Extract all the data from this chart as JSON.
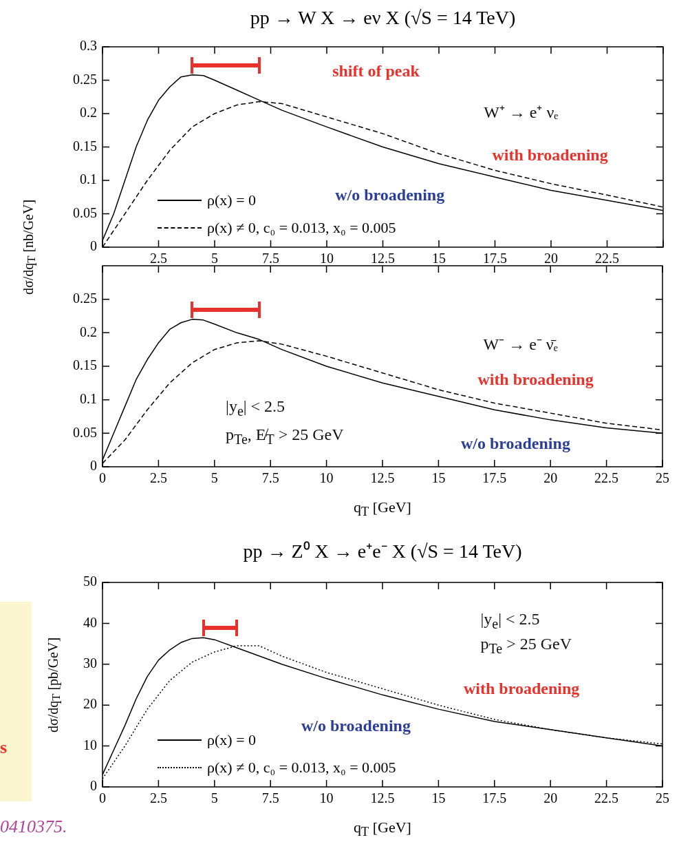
{
  "chart_data": [
    {
      "type": "line",
      "title": "pp → W X → eν X (√S = 14 TeV)",
      "ylabel": "dσ/dq$_{T}$ [nb/GeV]",
      "xlim": [
        0,
        25
      ],
      "xticks": [
        {
          "value": 0,
          "label": null
        },
        2.5,
        5,
        7.5,
        10,
        12.5,
        15,
        17.5,
        20,
        22.5,
        {
          "value": 25,
          "label": null
        }
      ],
      "ylim": [
        0,
        0.3
      ],
      "yticks": [
        0,
        0.05,
        0.1,
        0.15,
        0.2,
        0.25,
        0.3
      ],
      "grid": false,
      "legend": "bottom left",
      "marker": "none",
      "series": [
        {
          "name": "ρ(x) = 0",
          "color": "#000000",
          "line_style": "solid",
          "x": [
            0,
            0.5,
            1,
            1.5,
            2,
            2.5,
            3,
            3.5,
            4,
            4.5,
            5,
            6,
            7,
            8,
            10,
            12.5,
            15,
            17.5,
            20,
            22.5,
            25
          ],
          "values": [
            0.01,
            0.05,
            0.1,
            0.15,
            0.19,
            0.22,
            0.24,
            0.255,
            0.258,
            0.257,
            0.25,
            0.235,
            0.22,
            0.205,
            0.18,
            0.15,
            0.125,
            0.105,
            0.085,
            0.07,
            0.055
          ]
        },
        {
          "name": "ρ(x) ≠ 0, c₀ = 0.013, x₀ = 0.005",
          "color": "#000000",
          "line_style": "dashed",
          "x": [
            0,
            1,
            2,
            3,
            4,
            5,
            6,
            7,
            8,
            10,
            12.5,
            15,
            17.5,
            20,
            22.5,
            25
          ],
          "values": [
            0,
            0.05,
            0.1,
            0.145,
            0.18,
            0.2,
            0.213,
            0.218,
            0.215,
            0.195,
            0.17,
            0.14,
            0.115,
            0.095,
            0.078,
            0.06
          ]
        }
      ],
      "annotations": [
        "shift of peak",
        "W⁺ → e⁺ νₑ",
        "with broadening",
        "w/o broadening"
      ]
    },
    {
      "type": "line",
      "xlabel": "q$_{T}$ [GeV]",
      "xlim": [
        0,
        25
      ],
      "xticks": [
        0,
        2.5,
        5,
        7.5,
        10,
        12.5,
        15,
        17.5,
        20,
        22.5,
        25
      ],
      "ylim": [
        0,
        0.3
      ],
      "yticks": [
        0,
        0.05,
        0.1,
        0.15,
        0.2,
        0.25
      ],
      "grid": false,
      "legend": false,
      "marker": "none",
      "series": [
        {
          "color": "#000000",
          "line_style": "solid",
          "x": [
            0,
            0.5,
            1,
            1.5,
            2,
            2.5,
            3,
            3.5,
            4,
            4.5,
            5,
            6,
            7,
            8,
            10,
            12.5,
            15,
            17.5,
            20,
            22.5,
            25
          ],
          "values": [
            0.01,
            0.05,
            0.09,
            0.13,
            0.16,
            0.185,
            0.205,
            0.215,
            0.22,
            0.219,
            0.213,
            0.2,
            0.19,
            0.175,
            0.15,
            0.125,
            0.105,
            0.085,
            0.07,
            0.058,
            0.05
          ]
        },
        {
          "color": "#000000",
          "line_style": "dashed",
          "x": [
            0,
            1,
            2,
            3,
            4,
            5,
            6,
            7,
            8,
            10,
            12.5,
            15,
            17.5,
            20,
            22.5,
            25
          ],
          "values": [
            0.005,
            0.04,
            0.085,
            0.125,
            0.155,
            0.175,
            0.185,
            0.188,
            0.183,
            0.165,
            0.14,
            0.115,
            0.095,
            0.08,
            0.065,
            0.055
          ]
        }
      ],
      "annotations": [
        "W⁻ → e⁻ ν̄ₑ",
        "with broadening",
        "|y$_{e}$| < 2.5",
        "p$_{Te}$, E̸$_{T}$ > 25 GeV",
        "w/o broadening"
      ]
    },
    {
      "type": "line",
      "title": "pp → Z⁰ X → e⁺e⁻ X (√S = 14 TeV)",
      "xlabel": "q$_{T}$ [GeV]",
      "ylabel": "dσ/dq$_{T}$ [pb/GeV]",
      "xlim": [
        0,
        25
      ],
      "xticks": [
        0,
        2.5,
        5,
        7.5,
        10,
        12.5,
        15,
        17.5,
        20,
        22.5,
        25
      ],
      "ylim": [
        0,
        50
      ],
      "yticks": [
        0,
        10,
        20,
        30,
        40,
        50
      ],
      "grid": false,
      "legend": "bottom left",
      "marker": "none",
      "series": [
        {
          "name": "ρ(x) = 0",
          "color": "#000000",
          "line_style": "solid",
          "x": [
            0,
            0.5,
            1,
            1.5,
            2,
            2.5,
            3,
            3.5,
            4,
            4.5,
            5,
            6,
            8,
            10,
            12.5,
            15,
            17.5,
            20,
            22.5,
            25
          ],
          "values": [
            3,
            9,
            15,
            21.5,
            27,
            31,
            33.5,
            35.3,
            36.3,
            36.5,
            36,
            34,
            30,
            26.5,
            22.5,
            19,
            16,
            14,
            12,
            10
          ]
        },
        {
          "name": "ρ(x) ≠ 0, c₀ = 0.013, x₀ = 0.005",
          "color": "#000000",
          "line_style": "dotted",
          "x": [
            0,
            1,
            2,
            3,
            4,
            5,
            6,
            7,
            8,
            10,
            12.5,
            15,
            17.5,
            20,
            22.5,
            25
          ],
          "values": [
            2,
            10,
            19,
            26,
            30.5,
            33,
            34.5,
            34.5,
            32,
            28,
            24,
            20,
            16.5,
            14,
            12,
            10.5
          ]
        }
      ],
      "annotations": [
        "|y$_{e}$| < 2.5",
        "p$_{Te}$ > 25 GeV",
        "with broadening",
        "w/o broadening",
        "s",
        "0410375."
      ]
    }
  ]
}
